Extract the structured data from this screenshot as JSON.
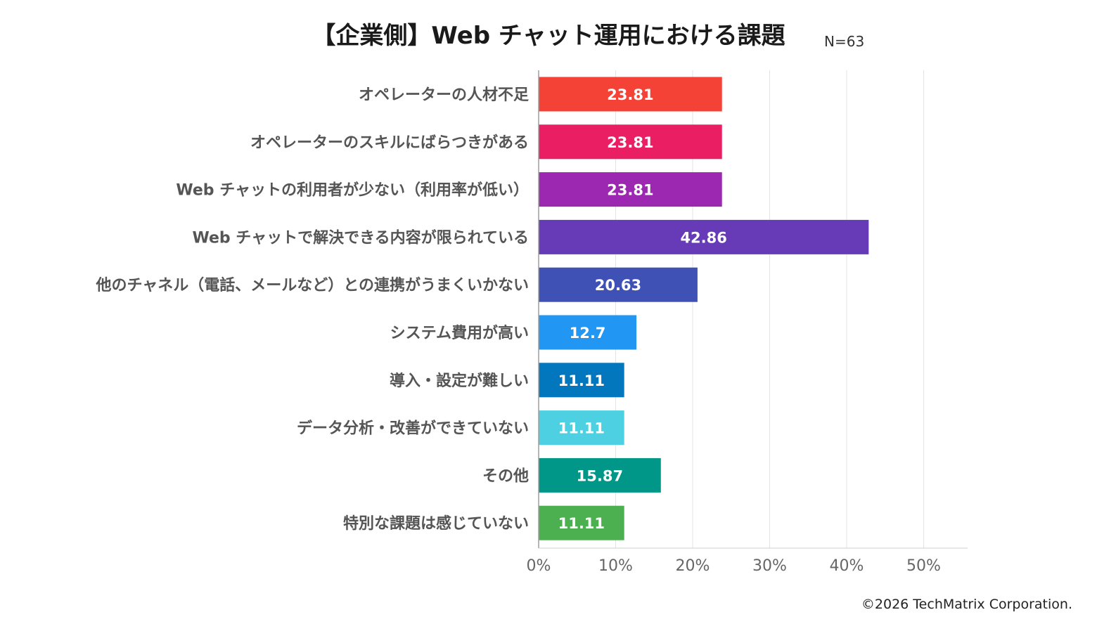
{
  "chart_data": {
    "type": "bar",
    "orientation": "horizontal",
    "title": "【企業側】Web チャット運用における課題",
    "sample_size": "N=63",
    "categories": [
      "オペレーターの人材不足",
      "オペレーターのスキルにばらつきがある",
      "Web チャットの利用者が少ない（利用率が低い）",
      "Web チャットで解決できる内容が限られている",
      "他のチャネル（電話、メールなど）との連携がうまくいかない",
      "システム費用が高い",
      "導入・設定が難しい",
      "データ分析・改善ができていない",
      "その他",
      "特別な課題は感じていない"
    ],
    "values": [
      23.81,
      23.81,
      23.81,
      42.86,
      20.63,
      12.7,
      11.11,
      11.11,
      15.87,
      11.11
    ],
    "value_labels": [
      "23.81",
      "23.81",
      "23.81",
      "42.86",
      "20.63",
      "12.7",
      "11.11",
      "11.11",
      "15.87",
      "11.11"
    ],
    "colors": [
      "#f44336",
      "#e91e63",
      "#9c27b0",
      "#673ab7",
      "#3f51b5",
      "#2196f3",
      "#0277bd",
      "#4dd0e1",
      "#009688",
      "#4caf50"
    ],
    "xlim": [
      0,
      50
    ],
    "ticks": [
      0,
      10,
      20,
      30,
      40,
      50
    ],
    "tick_labels": [
      "0%",
      "10%",
      "20%",
      "30%",
      "40%",
      "50%"
    ],
    "grid": true,
    "xlabel": "",
    "ylabel": ""
  },
  "footer": {
    "copyright": "©2026 TechMatrix Corporation."
  }
}
